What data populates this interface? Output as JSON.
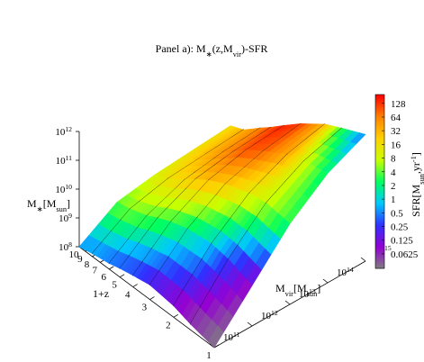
{
  "chart_data": {
    "type": "surface3d",
    "title": [
      {
        "text": "Panel a): M"
      },
      {
        "text": "∗",
        "sub": true
      },
      {
        "text": "(z,M"
      },
      {
        "text": "vir",
        "sub": true
      },
      {
        "text": ")-SFR"
      }
    ],
    "xlabel": [
      {
        "text": "1+z"
      }
    ],
    "ylabel": [
      {
        "text": "M"
      },
      {
        "text": "vir",
        "sub": true
      },
      {
        "text": "[M"
      },
      {
        "text": "sun",
        "sub": true
      },
      {
        "text": "]"
      }
    ],
    "zlabel": [
      {
        "text": "M"
      },
      {
        "text": "∗",
        "sub": true
      },
      {
        "text": "[M"
      },
      {
        "text": "sun",
        "sub": true
      },
      {
        "text": "]"
      }
    ],
    "clabel": [
      {
        "text": "SFR[M"
      },
      {
        "text": "sun",
        "sub": true
      },
      {
        "text": ",yr"
      },
      {
        "text": "-1",
        "sup": true
      },
      {
        "text": "]"
      }
    ],
    "x": [
      1,
      1.5,
      2,
      3,
      4,
      5,
      6,
      8,
      10
    ],
    "y": [
      100000000000.0,
      1000000000000.0,
      10000000000000.0,
      100000000000000.0,
      1000000000000000.0
    ],
    "xlim": [
      1,
      10
    ],
    "xticks": [
      1,
      2,
      3,
      4,
      5,
      6,
      7,
      8,
      9,
      10
    ],
    "xlog": true,
    "ylim": [
      100000000000.0,
      1000000000000000.0
    ],
    "yticks": [
      {
        "value": 100000000000.0,
        "label": [
          "10",
          "11"
        ]
      },
      {
        "value": 1000000000000.0,
        "label": [
          "10",
          "12"
        ]
      },
      {
        "value": 10000000000000.0,
        "label": [
          "10",
          "13"
        ]
      },
      {
        "value": 100000000000000.0,
        "label": [
          "10",
          "14"
        ]
      },
      {
        "value": 1000000000000000.0,
        "label": [
          "10",
          "15"
        ]
      }
    ],
    "ylog": true,
    "zlim": [
      100000000.0,
      1000000000000.0
    ],
    "zticks": [
      {
        "value": 100000000.0,
        "label": [
          "10",
          "8"
        ]
      },
      {
        "value": 1000000000.0,
        "label": [
          "10",
          "9"
        ]
      },
      {
        "value": 10000000000.0,
        "label": [
          "10",
          "10"
        ]
      },
      {
        "value": 100000000000.0,
        "label": [
          "10",
          "11"
        ]
      },
      {
        "value": 1000000000000.0,
        "label": [
          "10",
          "12"
        ]
      }
    ],
    "zlog": true,
    "values": [
      [
        100000000.0,
        2500000000.0,
        63000000000.0,
        630000000000.0,
        2500000000000.0
      ],
      [
        158000000.0,
        5000000000.0,
        79000000000.0,
        400000000000.0,
        1000000000000.0
      ],
      [
        250000000.0,
        6300000000.0,
        63000000000.0,
        250000000000.0,
        500000000000.0
      ],
      [
        320000000.0,
        5000000000.0,
        32000000000.0,
        79000000000.0,
        126000000000.0
      ],
      [
        250000000.0,
        3200000000.0,
        15800000000.0,
        32000000000.0,
        40000000000.0
      ],
      [
        200000000.0,
        2000000000.0,
        7900000000.0,
        12600000000.0,
        15800000000.0
      ],
      [
        158000000.0,
        1260000000.0,
        4000000000.0,
        6300000000.0,
        7900000000.0
      ],
      [
        126000000.0,
        790000000.0,
        1580000000.0,
        2000000000.0,
        2500000000.0
      ],
      [
        100000000.0,
        630000000.0,
        1000000000.0,
        1260000000.0,
        1580000000.0
      ]
    ],
    "sfr": [
      [
        0.03,
        0.08,
        3,
        2,
        0.4
      ],
      [
        0.05,
        0.3,
        8,
        10,
        3
      ],
      [
        0.08,
        1,
        12,
        40,
        30
      ],
      [
        0.15,
        2,
        25,
        90,
        120
      ],
      [
        0.25,
        3,
        30,
        100,
        150
      ],
      [
        0.3,
        3.5,
        25,
        70,
        100
      ],
      [
        0.35,
        4,
        20,
        50,
        60
      ],
      [
        0.5,
        5,
        15,
        30,
        35
      ],
      [
        0.5,
        4,
        10,
        15,
        16
      ]
    ],
    "clim": [
      0.03,
      200
    ],
    "clog": true,
    "cticks": [
      0.0625,
      0.125,
      0.25,
      0.5,
      1,
      2,
      4,
      8,
      16,
      32,
      64,
      128
    ],
    "colormap": [
      "#808080",
      "#9400d3",
      "#3030ff",
      "#00c8ff",
      "#00ff60",
      "#c8ff00",
      "#ffd000",
      "#ff8000",
      "#ff0000"
    ],
    "mesh_color": "#000000"
  }
}
